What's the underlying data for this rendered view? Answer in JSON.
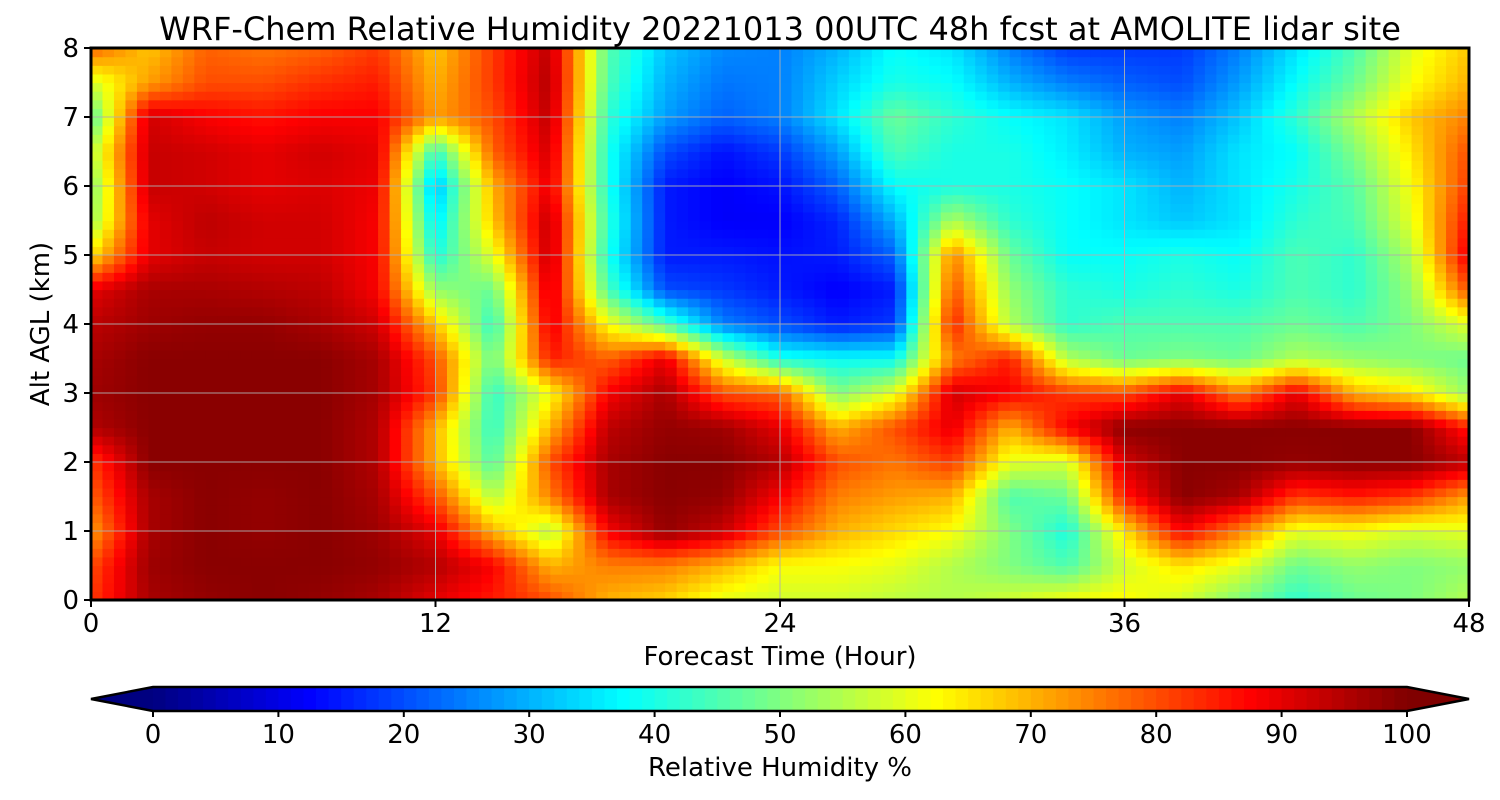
{
  "chart_data": {
    "type": "heatmap",
    "title": "WRF-Chem Relative Humidity 20221013 00UTC 48h fcst at AMOLITE lidar site",
    "xlabel": "Forecast Time (Hour)",
    "ylabel": "Alt AGL (km)",
    "xlim": [
      0,
      48
    ],
    "ylim": [
      0,
      8
    ],
    "x_ticks": [
      "0",
      "12",
      "24",
      "36",
      "48"
    ],
    "y_ticks": [
      "0",
      "1",
      "2",
      "3",
      "4",
      "5",
      "6",
      "7",
      "8"
    ],
    "grid": true,
    "colormap": "jet",
    "colorbar": {
      "label": "Relative Humidity %",
      "orientation": "horizontal",
      "position": "bottom",
      "extend": "both",
      "range": [
        0,
        100
      ],
      "ticks": [
        "0",
        "10",
        "20",
        "30",
        "40",
        "50",
        "60",
        "70",
        "80",
        "90",
        "100"
      ]
    },
    "x": [
      0,
      2,
      4,
      6,
      8,
      10,
      12,
      14,
      16,
      18,
      20,
      22,
      24,
      26,
      28,
      30,
      32,
      34,
      36,
      38,
      40,
      42,
      44,
      46,
      48
    ],
    "y": [
      0,
      0.5,
      1,
      1.5,
      2,
      2.5,
      3,
      3.5,
      4,
      4.5,
      5,
      5.5,
      6,
      6.5,
      7,
      7.5,
      8
    ],
    "z": [
      [
        82,
        96,
        98,
        99,
        98,
        96,
        90,
        85,
        80,
        70,
        67,
        60,
        58,
        58,
        56,
        55,
        58,
        62,
        63,
        58,
        50,
        42,
        48,
        50,
        55
      ],
      [
        80,
        97,
        99,
        99,
        99,
        98,
        95,
        88,
        70,
        75,
        75,
        70,
        62,
        62,
        60,
        55,
        50,
        45,
        58,
        65,
        60,
        48,
        52,
        50,
        52
      ],
      [
        72,
        96,
        99,
        98,
        99,
        97,
        90,
        70,
        55,
        88,
        98,
        93,
        80,
        70,
        66,
        62,
        50,
        40,
        65,
        88,
        75,
        60,
        62,
        58,
        60
      ],
      [
        78,
        96,
        99,
        98,
        99,
        96,
        80,
        55,
        75,
        96,
        99,
        98,
        88,
        75,
        72,
        70,
        45,
        48,
        85,
        99,
        96,
        82,
        85,
        82,
        72
      ],
      [
        82,
        99,
        99,
        99,
        99,
        95,
        70,
        45,
        80,
        96,
        99,
        99,
        95,
        80,
        76,
        82,
        60,
        58,
        92,
        99,
        99,
        98,
        99,
        99,
        94
      ],
      [
        95,
        99,
        99,
        99,
        99,
        95,
        70,
        42,
        70,
        94,
        98,
        97,
        90,
        70,
        80,
        90,
        70,
        88,
        99,
        99,
        99,
        99,
        99,
        99,
        85
      ],
      [
        97,
        99,
        99,
        99,
        99,
        96,
        82,
        42,
        62,
        88,
        96,
        80,
        78,
        50,
        60,
        92,
        88,
        82,
        80,
        90,
        75,
        90,
        70,
        65,
        52
      ],
      [
        96,
        99,
        99,
        99,
        99,
        96,
        80,
        48,
        85,
        78,
        90,
        58,
        40,
        38,
        38,
        75,
        85,
        55,
        48,
        50,
        48,
        55,
        52,
        50,
        48
      ],
      [
        94,
        97,
        98,
        98,
        96,
        92,
        68,
        42,
        90,
        62,
        45,
        25,
        20,
        15,
        18,
        85,
        55,
        42,
        45,
        45,
        45,
        48,
        45,
        50,
        60
      ],
      [
        90,
        96,
        96,
        95,
        94,
        88,
        52,
        48,
        92,
        45,
        20,
        18,
        15,
        12,
        15,
        80,
        52,
        42,
        40,
        42,
        40,
        45,
        42,
        52,
        80
      ],
      [
        65,
        90,
        93,
        92,
        92,
        88,
        40,
        60,
        94,
        40,
        15,
        15,
        14,
        15,
        22,
        75,
        48,
        38,
        38,
        40,
        38,
        45,
        42,
        55,
        90
      ],
      [
        52,
        90,
        94,
        92,
        92,
        88,
        35,
        68,
        94,
        42,
        15,
        12,
        12,
        16,
        30,
        55,
        42,
        38,
        35,
        32,
        35,
        42,
        45,
        60,
        86
      ],
      [
        50,
        93,
        92,
        90,
        91,
        89,
        30,
        70,
        90,
        40,
        15,
        12,
        14,
        22,
        38,
        40,
        40,
        38,
        35,
        30,
        35,
        40,
        46,
        62,
        82
      ],
      [
        55,
        93,
        92,
        90,
        92,
        90,
        42,
        78,
        92,
        40,
        20,
        14,
        18,
        28,
        45,
        40,
        40,
        36,
        30,
        28,
        35,
        38,
        50,
        65,
        80
      ],
      [
        45,
        92,
        88,
        86,
        88,
        88,
        72,
        80,
        94,
        42,
        28,
        22,
        25,
        35,
        48,
        42,
        38,
        35,
        28,
        25,
        32,
        42,
        55,
        68,
        75
      ],
      [
        58,
        72,
        80,
        80,
        83,
        85,
        70,
        82,
        95,
        45,
        30,
        24,
        25,
        33,
        40,
        38,
        30,
        25,
        22,
        20,
        28,
        38,
        48,
        62,
        70
      ],
      [
        78,
        68,
        78,
        76,
        78,
        82,
        68,
        82,
        94,
        46,
        32,
        26,
        25,
        30,
        38,
        35,
        25,
        18,
        18,
        18,
        25,
        35,
        45,
        60,
        68
      ]
    ]
  }
}
